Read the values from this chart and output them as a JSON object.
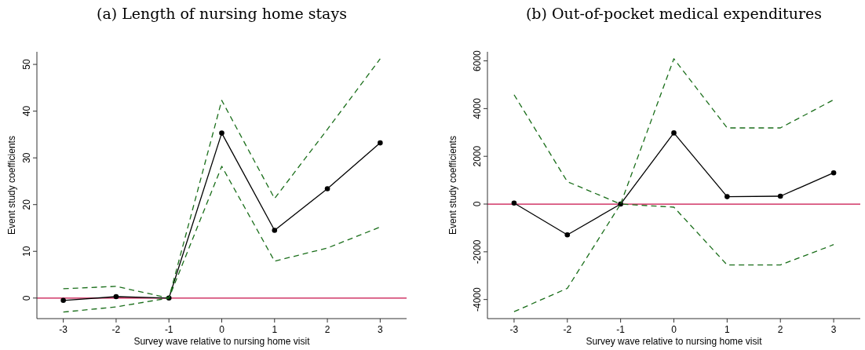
{
  "chart_data": [
    {
      "type": "line",
      "title": "(a) Length of nursing home stays",
      "xlabel": "Survey wave relative to nursing home visit",
      "ylabel": "Event study coefficients",
      "x": [
        -3,
        -2,
        -1,
        0,
        1,
        2,
        3
      ],
      "xlim": [
        -3.5,
        3.5
      ],
      "xticks": [
        -3,
        -2,
        -1,
        0,
        1,
        2,
        3
      ],
      "ylim": [
        -4.4,
        52.7
      ],
      "yticks": [
        0,
        10,
        20,
        30,
        40,
        50
      ],
      "grid": false,
      "series": [
        {
          "color": "#000000",
          "marker": "circle",
          "line_style": "solid",
          "values": [
            -0.5,
            0.3,
            0,
            35.3,
            14.5,
            23.4,
            33.2
          ]
        },
        {
          "color": "#1a6e1a",
          "marker": "none",
          "line_style": "dashed",
          "values": [
            2.0,
            2.5,
            0,
            42.3,
            21.3,
            36.1,
            51.2
          ]
        },
        {
          "color": "#1a6e1a",
          "marker": "none",
          "line_style": "dashed",
          "values": [
            -3.0,
            -1.9,
            0,
            28.2,
            7.9,
            10.7,
            15.2
          ]
        }
      ],
      "ref_lines": [
        {
          "axis": "y",
          "value": 0,
          "color": "#c8104a"
        }
      ]
    },
    {
      "type": "line",
      "title": "(b) Out-of-pocket medical expenditures",
      "xlabel": "Survey wave relative to nursing home visit",
      "ylabel": "Event study coefficients",
      "x": [
        -3,
        -2,
        -1,
        0,
        1,
        2,
        3
      ],
      "xlim": [
        -3.5,
        3.5
      ],
      "xticks": [
        -3,
        -2,
        -1,
        0,
        1,
        2,
        3
      ],
      "ylim": [
        -4800,
        6380
      ],
      "yticks": [
        -4000,
        -2000,
        0,
        2000,
        4000,
        6000
      ],
      "grid": false,
      "series": [
        {
          "color": "#000000",
          "marker": "circle",
          "line_style": "solid",
          "values": [
            40,
            -1290,
            0,
            2980,
            310,
            330,
            1310
          ]
        },
        {
          "color": "#1a6e1a",
          "marker": "none",
          "line_style": "dashed",
          "values": [
            4580,
            940,
            0,
            6090,
            3190,
            3190,
            4370
          ]
        },
        {
          "color": "#1a6e1a",
          "marker": "none",
          "line_style": "dashed",
          "values": [
            -4510,
            -3530,
            0,
            -130,
            -2550,
            -2550,
            -1700
          ]
        }
      ],
      "ref_lines": [
        {
          "axis": "y",
          "value": 0,
          "color": "#c8104a"
        }
      ]
    }
  ]
}
